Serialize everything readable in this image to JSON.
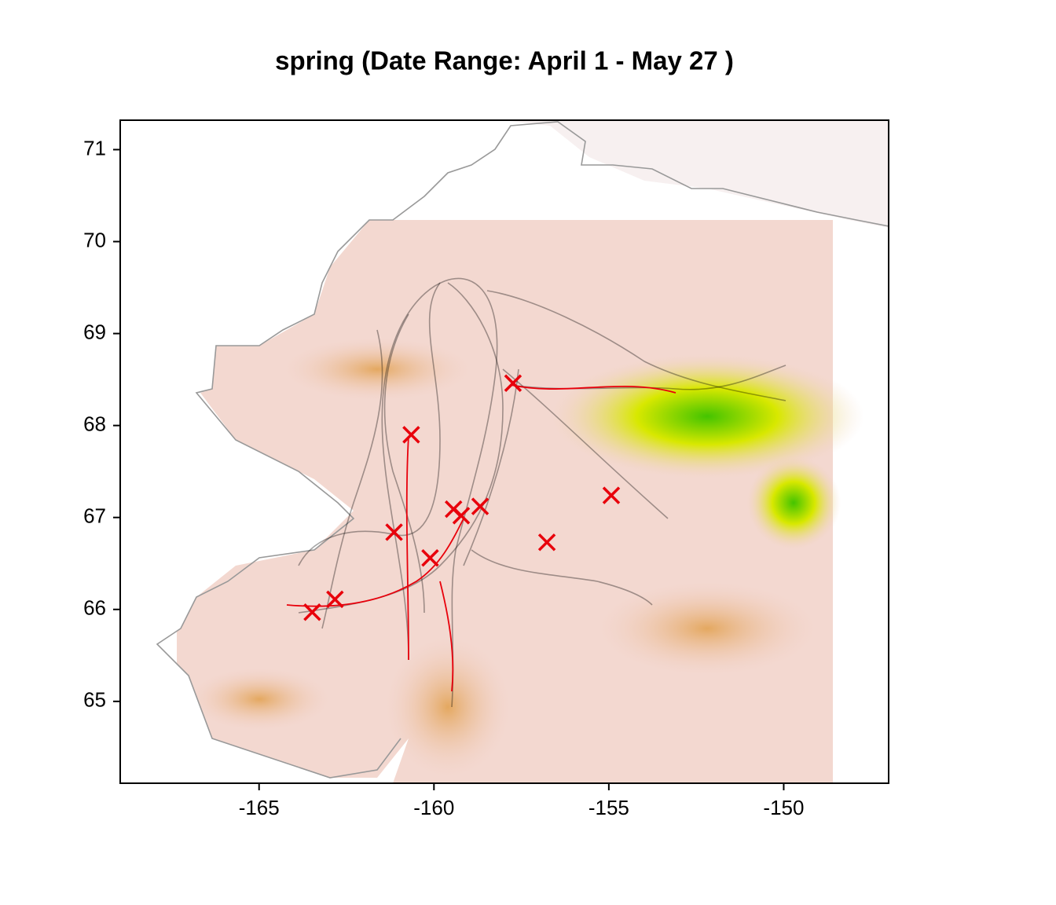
{
  "chart_data": {
    "type": "scatter",
    "title": "spring (Date Range:  April 1 - May 27 )",
    "x": [
      -157.74,
      -160.65,
      -154.93,
      -159.44,
      -159.22,
      -158.68,
      -161.14,
      -156.77,
      -160.11,
      -162.83,
      -163.48
    ],
    "y": [
      68.46,
      67.9,
      67.24,
      67.09,
      67.02,
      67.12,
      66.84,
      66.73,
      66.56,
      66.11,
      65.97
    ],
    "color": "#e8000b",
    "xlim": [
      -168.97,
      -147.0
    ],
    "ylim": [
      64.11,
      71.32
    ],
    "xticks": [
      -165,
      -160,
      -155,
      -150
    ],
    "yticks": [
      65,
      66,
      67,
      68,
      69,
      70,
      71
    ]
  }
}
